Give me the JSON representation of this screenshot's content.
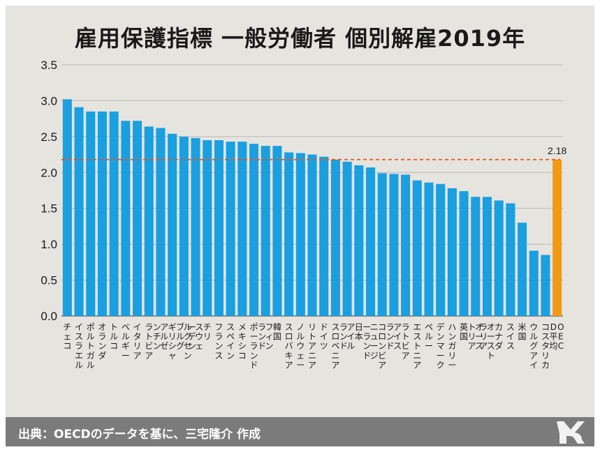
{
  "footer": {
    "source": "出典：OECDのデータを基に、三宅隆介 作成"
  },
  "colors": {
    "bar": "#1a9fe0",
    "highlight": "#f39a14",
    "reference_line": "#e8571c"
  },
  "chart_data": {
    "type": "bar",
    "title": "雇用保護指標 一般労働者 個別解雇2019年",
    "ylim": [
      0,
      3.5
    ],
    "yticks": [
      "0.0",
      "0.5",
      "1.0",
      "1.5",
      "2.0",
      "2.5",
      "3.0",
      "3.5"
    ],
    "grid": true,
    "categories": [
      "チェコ",
      "イスラエル",
      "ポルトガル",
      "オランダ",
      "トルコ",
      "ベルギー",
      "イタリア",
      "ラトビア",
      "アルゼンチン",
      "ギリシャ",
      "ルクセンブルグ",
      "スウェーデン",
      "チリ",
      "フランス",
      "スペイン",
      "メキシコ",
      "ポーランド",
      "フィンランド",
      "韓国",
      "スロバキア",
      "ノルウェー",
      "リトアニア",
      "ドイツ",
      "スロベニア",
      "アイルランド",
      "日本",
      "ニュージーランド",
      "コロンビア",
      "アイスランド",
      "ラトビア",
      "エストニア",
      "ペルー",
      "デンマーク",
      "ハンガリー",
      "英国",
      "オーストリア",
      "オーストラリア",
      "カナダ",
      "スイス",
      "米国",
      "ウルグアイ",
      "コスタリカ",
      "OECD平均"
    ],
    "values": [
      3.02,
      2.91,
      2.85,
      2.85,
      2.85,
      2.72,
      2.72,
      2.64,
      2.62,
      2.54,
      2.5,
      2.48,
      2.45,
      2.45,
      2.43,
      2.43,
      2.4,
      2.37,
      2.37,
      2.28,
      2.27,
      2.25,
      2.22,
      2.18,
      2.15,
      2.1,
      2.07,
      1.99,
      1.98,
      1.97,
      1.89,
      1.86,
      1.84,
      1.78,
      1.74,
      1.66,
      1.66,
      1.61,
      1.57,
      1.3,
      0.91,
      0.85,
      2.18
    ],
    "highlight_index": 42,
    "reference_line": {
      "value": 2.18,
      "label": "2.18"
    }
  }
}
